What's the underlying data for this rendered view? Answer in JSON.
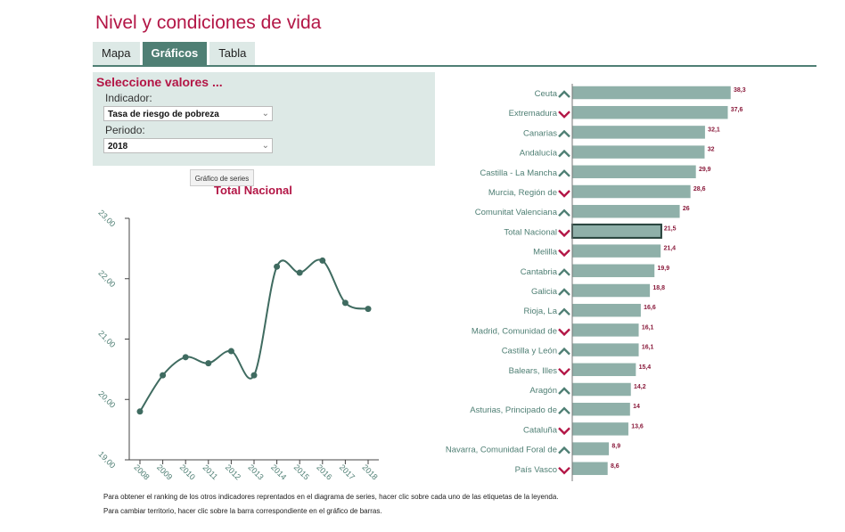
{
  "page": {
    "title": "Nivel y condiciones de vida"
  },
  "tabs": [
    {
      "label": "Mapa",
      "active": false
    },
    {
      "label": "Gráficos",
      "active": true
    },
    {
      "label": "Tabla",
      "active": false
    }
  ],
  "selector": {
    "title": "Seleccione valores ...",
    "indicator_label": "Indicador:",
    "indicator_value": "Tasa de riesgo de pobreza",
    "period_label": "Periodo:",
    "period_value": "2018"
  },
  "tooltip": "Gráfico de series",
  "notes": [
    "Para obtener el ranking de los otros indicadores reprentados en el diagrama de series, hacer clic sobre cada uno de las etiquetas de la leyenda.",
    "Para cambiar territorio, hacer clic sobre la barra correspondiente en el gráfico de barras."
  ],
  "colors": {
    "accent": "#b31646",
    "line": "#3f6b60",
    "bar": "#8fb0a9",
    "bar_border": "#ffffff",
    "highlight_border": "#26423b",
    "up": "#4f7f74",
    "down": "#b31646"
  },
  "chart_data": [
    {
      "type": "line",
      "title": "Total Nacional",
      "x": [
        "2008",
        "2009",
        "2010",
        "2011",
        "2012",
        "2013",
        "2014",
        "2015",
        "2016",
        "2017",
        "2018"
      ],
      "series": [
        {
          "values": [
            19.8,
            20.4,
            20.7,
            20.6,
            20.8,
            20.4,
            22.2,
            22.1,
            22.3,
            21.6,
            21.5
          ]
        }
      ],
      "yticks": [
        "19,00",
        "20,00",
        "21,00",
        "22,00",
        "23,00"
      ],
      "ylim": [
        19,
        23
      ],
      "grid": false
    },
    {
      "type": "bar",
      "orientation": "horizontal",
      "categories": [
        "Ceuta",
        "Extremadura",
        "Canarias",
        "Andalucía",
        "Castilla - La Mancha",
        "Murcia, Región de",
        "Comunitat Valenciana",
        "Total Nacional",
        "Melilla",
        "Cantabria",
        "Galicia",
        "Rioja, La",
        "Madrid, Comunidad de",
        "Castilla y León",
        "Balears, Illes",
        "Aragón",
        "Asturias, Principado de",
        "Cataluña",
        "Navarra, Comunidad Foral de",
        "País Vasco"
      ],
      "values": [
        38.3,
        37.6,
        32.1,
        32,
        29.9,
        28.6,
        26,
        21.5,
        21.4,
        19.9,
        18.8,
        16.6,
        16.1,
        16.1,
        15.4,
        14.2,
        14,
        13.6,
        8.9,
        8.6
      ],
      "labels": [
        "38,3",
        "37,6",
        "32,1",
        "32",
        "29,9",
        "28,6",
        "26",
        "21,5",
        "21,4",
        "19,9",
        "18,8",
        "16,6",
        "16,1",
        "16,1",
        "15,4",
        "14,2",
        "14",
        "13,6",
        "8,9",
        "8,6"
      ],
      "trend": [
        "up",
        "down",
        "up",
        "up",
        "up",
        "down",
        "up",
        "down",
        "down",
        "up",
        "up",
        "up",
        "down",
        "up",
        "down",
        "up",
        "up",
        "down",
        "up",
        "down"
      ],
      "highlight": "Total Nacional"
    }
  ]
}
